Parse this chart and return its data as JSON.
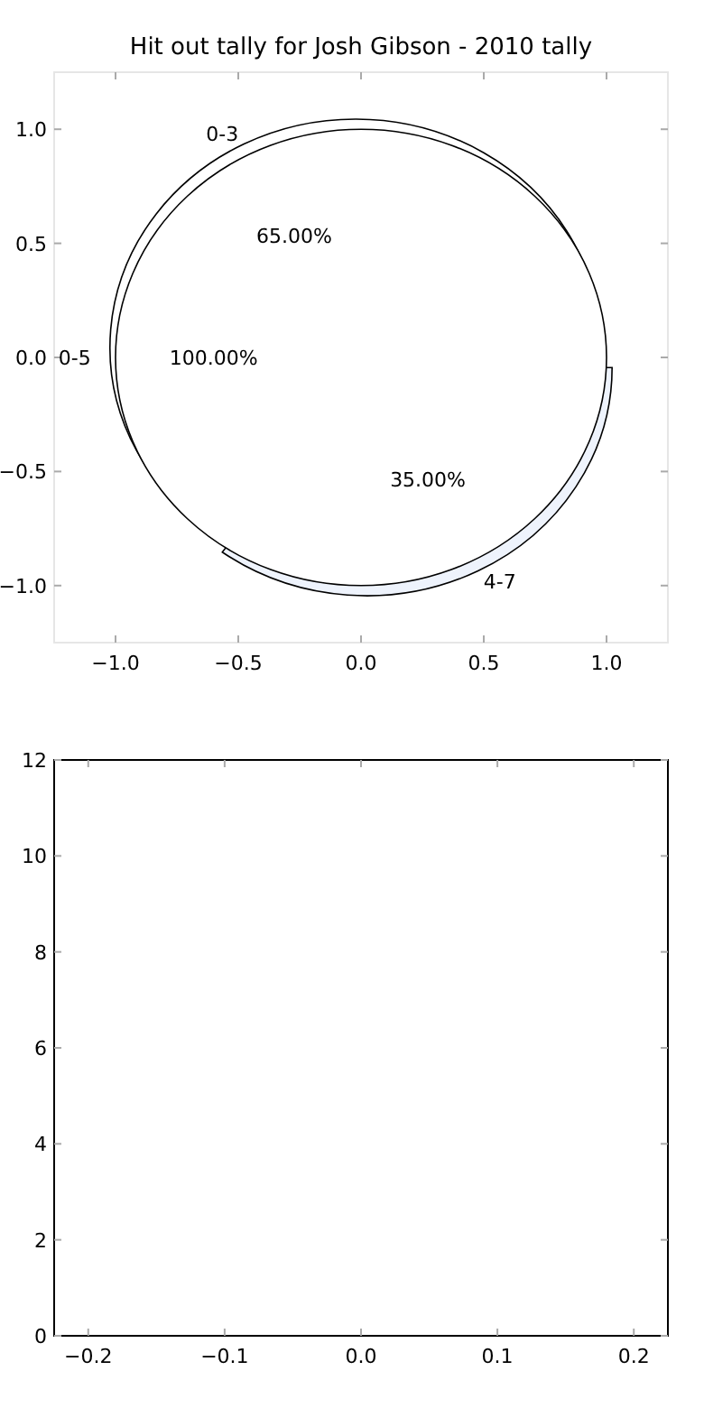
{
  "chart_data": [
    {
      "type": "pie",
      "title": "Hit out tally for Josh Gibson - 2010 tally",
      "categories": [
        "0-3",
        "4-7"
      ],
      "values": [
        65,
        35
      ],
      "colors": [
        "#ffffff",
        "#eef3fc"
      ],
      "value_labels": [
        "65.00%",
        "35.00%"
      ]
    },
    {
      "type": "pie",
      "categories": [
        "0-5"
      ],
      "values": [
        100
      ],
      "colors": [
        "#ffffff"
      ],
      "value_labels": [
        "100.00%"
      ]
    },
    {
      "type": "scatter",
      "xlim": [
        -1.25,
        1.25
      ],
      "ylim": [
        -1.25,
        1.25
      ],
      "xticks": [
        {
          "value": -1,
          "label": "−1.0"
        },
        {
          "value": -0.5,
          "label": "−0.5"
        },
        {
          "value": 0,
          "label": "0.0"
        },
        {
          "value": 0.5,
          "label": "0.5"
        },
        {
          "value": 1,
          "label": "1.0"
        }
      ],
      "yticks": [
        {
          "value": -1,
          "label": "−1.0"
        },
        {
          "value": -0.5,
          "label": "−0.5"
        },
        {
          "value": 0,
          "label": "0.0"
        },
        {
          "value": 0.5,
          "label": "0.5"
        },
        {
          "value": 1,
          "label": "1.0"
        }
      ]
    },
    {
      "type": "scatter",
      "xlim": [
        -0.225,
        0.225
      ],
      "ylim": [
        0,
        12
      ],
      "xticks": [
        {
          "value": -0.2,
          "label": "−0.2"
        },
        {
          "value": -0.1,
          "label": "−0.1"
        },
        {
          "value": 0,
          "label": "0.0"
        },
        {
          "value": 0.1,
          "label": "0.1"
        },
        {
          "value": 0.2,
          "label": "0.2"
        }
      ],
      "yticks": [
        0,
        2,
        4,
        6,
        8,
        10,
        12
      ]
    }
  ]
}
